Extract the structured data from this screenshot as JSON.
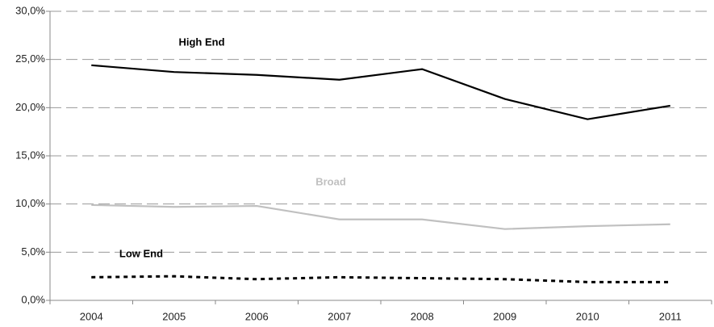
{
  "chart_data": {
    "type": "line",
    "categories": [
      "2004",
      "2005",
      "2006",
      "2007",
      "2008",
      "2009",
      "2010",
      "2011"
    ],
    "series": [
      {
        "name": "High End",
        "color": "#000000",
        "style": "solid",
        "values": [
          24.4,
          23.7,
          23.4,
          22.9,
          24.0,
          20.9,
          18.8,
          20.2
        ]
      },
      {
        "name": "Broad",
        "color": "#c0c0c0",
        "style": "solid",
        "values": [
          9.9,
          9.7,
          9.8,
          8.4,
          8.4,
          7.4,
          7.7,
          7.9
        ]
      },
      {
        "name": "Low End",
        "color": "#000000",
        "style": "dashed",
        "values": [
          2.4,
          2.5,
          2.2,
          2.4,
          2.3,
          2.2,
          1.9,
          1.9
        ]
      }
    ],
    "ylim": [
      0,
      30
    ],
    "yticks": [
      {
        "value": 0,
        "label": "0,0%"
      },
      {
        "value": 5,
        "label": "5,0%"
      },
      {
        "value": 10,
        "label": "10,0%"
      },
      {
        "value": 15,
        "label": "15,0%"
      },
      {
        "value": 20,
        "label": "20,0%"
      },
      {
        "value": 25,
        "label": "25,0%"
      },
      {
        "value": 30,
        "label": "30,0%"
      }
    ],
    "grid": true
  }
}
